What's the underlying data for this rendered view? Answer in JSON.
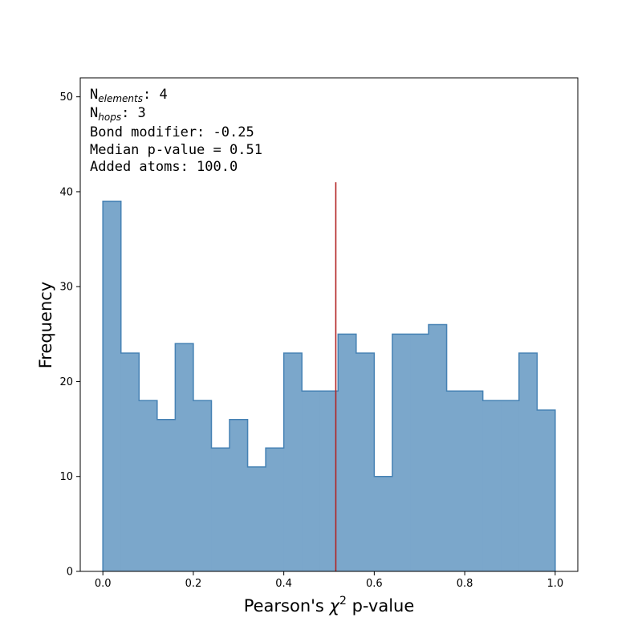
{
  "chart_data": {
    "type": "bar",
    "style": "histogram-step-filled",
    "bin_edges": [
      0.0,
      0.04,
      0.08,
      0.12,
      0.16,
      0.2,
      0.24,
      0.28,
      0.32,
      0.36,
      0.4,
      0.44,
      0.48,
      0.52,
      0.56,
      0.6,
      0.64,
      0.68,
      0.72,
      0.76,
      0.8,
      0.84,
      0.88,
      0.92,
      0.96,
      1.0
    ],
    "values": [
      39,
      23,
      18,
      16,
      24,
      18,
      13,
      16,
      11,
      13,
      23,
      19,
      19,
      25,
      23,
      10,
      25,
      25,
      26,
      19,
      19,
      18,
      18,
      23,
      17
    ],
    "xlabel": {
      "pre": "Pearson's ",
      "sym": "χ",
      "sup": "2",
      "post": " p-value"
    },
    "ylabel": "Frequency",
    "xlim": [
      -0.05,
      1.05
    ],
    "ylim": [
      0,
      52
    ],
    "xticks": [
      0.0,
      0.2,
      0.4,
      0.6,
      0.8,
      1.0
    ],
    "xtick_labels": [
      "0.0",
      "0.2",
      "0.4",
      "0.6",
      "0.8",
      "1.0"
    ],
    "yticks": [
      0,
      10,
      20,
      30,
      40,
      50
    ],
    "ytick_labels": [
      "0",
      "10",
      "20",
      "30",
      "40",
      "50"
    ],
    "median_line": {
      "x": 0.515,
      "y_top": 41,
      "color": "#b22222"
    },
    "grid": false,
    "fill_color": "#7ba7cb",
    "edge_color": "#4682b4",
    "annotations": {
      "n_elements": {
        "base": "N",
        "sub": "elements",
        "value": ": 4"
      },
      "n_hops": {
        "base": "N",
        "sub": "hops",
        "value": ": 3"
      },
      "bond_modifier": "Bond modifier: -0.25",
      "median": "Median p-value = 0.51",
      "added_atoms": "Added atoms: 100.0"
    }
  }
}
